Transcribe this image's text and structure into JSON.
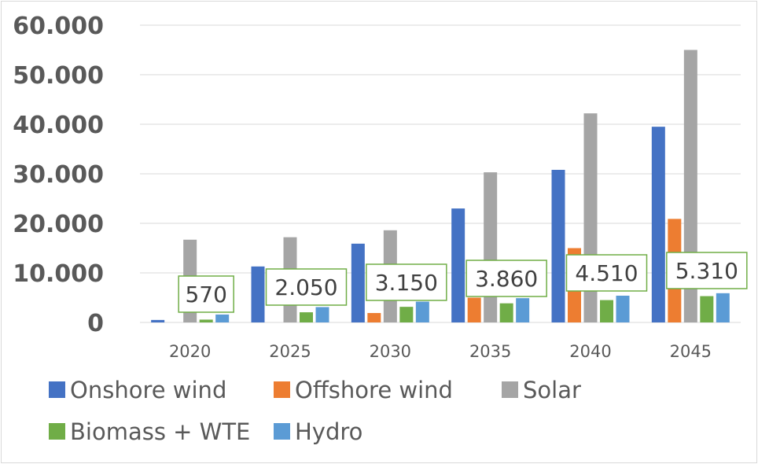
{
  "chart_data": {
    "type": "bar",
    "categories": [
      "2020",
      "2025",
      "2030",
      "2035",
      "2040",
      "2045"
    ],
    "ylim": [
      0,
      60000
    ],
    "yticks": [
      0,
      10000,
      20000,
      30000,
      40000,
      50000,
      60000
    ],
    "ytick_labels": [
      "0",
      "10.000",
      "20.000",
      "30.000",
      "40.000",
      "50.000",
      "60.000"
    ],
    "grid": true,
    "legend_position": "bottom",
    "series": [
      {
        "name": "Onshore wind",
        "color": "#4472c4",
        "values": [
          500,
          11300,
          15900,
          23000,
          30800,
          39500
        ]
      },
      {
        "name": "Offshore wind",
        "color": "#ed7d31",
        "values": [
          0,
          0,
          1900,
          5000,
          15000,
          20900
        ]
      },
      {
        "name": "Solar",
        "color": "#a5a5a5",
        "values": [
          16700,
          17200,
          18600,
          30300,
          42200,
          55000
        ]
      },
      {
        "name": "Biomass + WTE",
        "color": "#70ad47",
        "values": [
          570,
          2050,
          3150,
          3860,
          4510,
          5310
        ]
      },
      {
        "name": "Hydro",
        "color": "#5b9bd5",
        "values": [
          1600,
          3100,
          4200,
          4900,
          5400,
          5900
        ]
      }
    ],
    "data_labels": {
      "series": "Biomass + WTE",
      "labels": [
        "570",
        "2.050",
        "3.150",
        "3.860",
        "4.510",
        "5.310"
      ],
      "border_color": "#70ad47"
    }
  }
}
